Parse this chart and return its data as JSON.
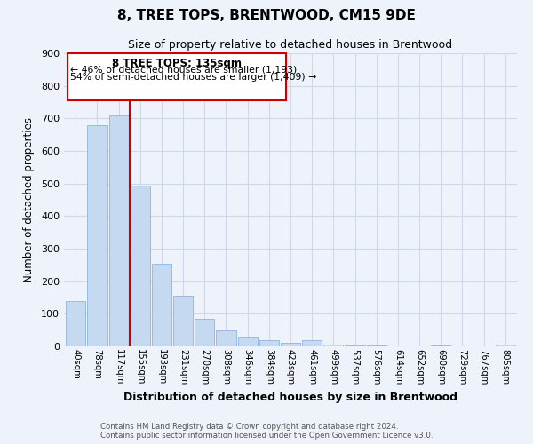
{
  "title": "8, TREE TOPS, BRENTWOOD, CM15 9DE",
  "subtitle": "Size of property relative to detached houses in Brentwood",
  "xlabel": "Distribution of detached houses by size in Brentwood",
  "ylabel": "Number of detached properties",
  "bar_labels": [
    "40sqm",
    "78sqm",
    "117sqm",
    "155sqm",
    "193sqm",
    "231sqm",
    "270sqm",
    "308sqm",
    "346sqm",
    "384sqm",
    "423sqm",
    "461sqm",
    "499sqm",
    "537sqm",
    "576sqm",
    "614sqm",
    "652sqm",
    "690sqm",
    "729sqm",
    "767sqm",
    "805sqm"
  ],
  "bar_values": [
    138,
    678,
    710,
    493,
    253,
    155,
    85,
    50,
    28,
    20,
    12,
    20,
    5,
    3,
    2,
    0,
    0,
    3,
    0,
    0,
    5
  ],
  "bar_color": "#c5d9f1",
  "bar_edge_color": "#8db4e2",
  "grid_color": "#d0d8e8",
  "annotation_box_color": "#cc0000",
  "vline_color": "#cc0000",
  "vline_x_idx": 2.5,
  "annotation_title": "8 TREE TOPS: 135sqm",
  "annotation_line1": "← 46% of detached houses are smaller (1,193)",
  "annotation_line2": "54% of semi-detached houses are larger (1,409) →",
  "footer_line1": "Contains HM Land Registry data © Crown copyright and database right 2024.",
  "footer_line2": "Contains public sector information licensed under the Open Government Licence v3.0.",
  "ylim": [
    0,
    900
  ],
  "yticks": [
    0,
    100,
    200,
    300,
    400,
    500,
    600,
    700,
    800,
    900
  ],
  "background_color": "#eef2fa"
}
